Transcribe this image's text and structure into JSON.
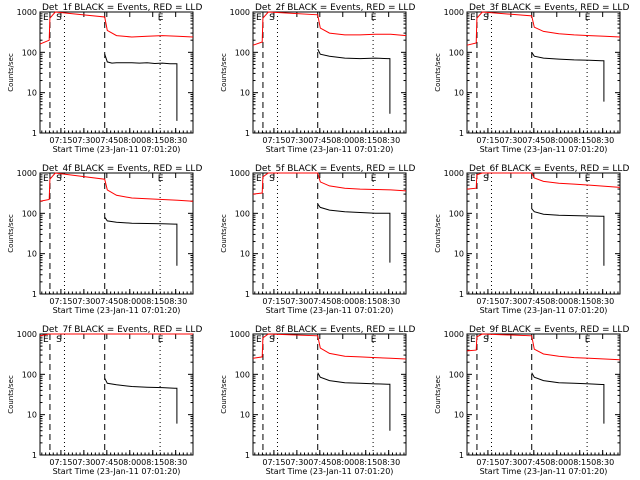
{
  "chart_data": [
    {
      "type": "line",
      "title": "Det_1f BLACK = Events, RED = LLD",
      "ylabel": "Counts/sec",
      "xlabel": "Start Time (23-Jan-11 07:01:20)",
      "y_scale": "log",
      "ylim": [
        1,
        1000
      ],
      "y_ticks": [
        "1",
        "10",
        "100",
        "1000"
      ],
      "x_ticks": [
        "07:15",
        "07:30",
        "07:45",
        "08:00",
        "08:15",
        "08:30"
      ],
      "markers": [
        "E",
        "S",
        "E"
      ],
      "series": [
        {
          "name": "Events",
          "color": "#000000",
          "x": [
            42.3,
            44,
            47,
            50,
            54,
            60,
            65,
            70,
            75,
            80,
            85,
            89.5,
            89.5
          ],
          "values": [
            90,
            58,
            54,
            55,
            55,
            55,
            54,
            55,
            53,
            54,
            52,
            52,
            2
          ]
        },
        {
          "name": "LLD",
          "color": "#ff0000",
          "x": [
            0,
            6,
            6.5,
            10,
            42.3,
            44,
            50,
            60,
            70,
            80,
            90,
            100
          ],
          "values": [
            160,
            200,
            700,
            1000,
            750,
            350,
            260,
            240,
            250,
            260,
            250,
            240
          ]
        }
      ]
    },
    {
      "type": "line",
      "title": "Det_2f BLACK = Events, RED = LLD",
      "ylabel": "Counts/sec",
      "xlabel": "Start Time (23-Jan-11 07:01:20)",
      "y_scale": "log",
      "ylim": [
        1,
        1000
      ],
      "y_ticks": [
        "1",
        "10",
        "100",
        "1000"
      ],
      "x_ticks": [
        "07:15",
        "07:30",
        "07:45",
        "08:00",
        "08:15",
        "08:30"
      ],
      "markers": [
        "E",
        "S",
        "E"
      ],
      "series": [
        {
          "name": "Events",
          "color": "#000000",
          "x": [
            42.3,
            44,
            50,
            60,
            70,
            80,
            88,
            89.5,
            89.5
          ],
          "values": [
            120,
            90,
            80,
            72,
            70,
            72,
            70,
            70,
            3
          ]
        },
        {
          "name": "LLD",
          "color": "#ff0000",
          "x": [
            0,
            6,
            6.5,
            10,
            42.3,
            44,
            50,
            60,
            70,
            80,
            90,
            100
          ],
          "values": [
            150,
            180,
            700,
            1000,
            850,
            400,
            300,
            270,
            270,
            280,
            280,
            260
          ]
        }
      ]
    },
    {
      "type": "line",
      "title": "Det_3f BLACK = Events, RED = LLD",
      "ylabel": "Counts/sec",
      "xlabel": "Start Time (23-Jan-11 07:01:20)",
      "y_scale": "log",
      "ylim": [
        1,
        1000
      ],
      "y_ticks": [
        "1",
        "10",
        "100",
        "1000"
      ],
      "x_ticks": [
        "07:15",
        "07:30",
        "07:45",
        "08:00",
        "08:15",
        "08:30"
      ],
      "markers": [
        "E",
        "S",
        "E"
      ],
      "series": [
        {
          "name": "Events",
          "color": "#000000",
          "x": [
            42.3,
            44,
            50,
            60,
            70,
            80,
            88,
            89.5,
            89.5
          ],
          "values": [
            100,
            80,
            72,
            68,
            65,
            64,
            62,
            62,
            6
          ]
        },
        {
          "name": "LLD",
          "color": "#ff0000",
          "x": [
            0,
            6,
            6.5,
            10,
            42.3,
            44,
            50,
            60,
            70,
            80,
            90,
            100
          ],
          "values": [
            150,
            170,
            700,
            1000,
            800,
            420,
            330,
            290,
            270,
            260,
            250,
            240
          ]
        }
      ]
    },
    {
      "type": "line",
      "title": "Det_4f BLACK = Events, RED = LLD",
      "ylabel": "Counts/sec",
      "xlabel": "Start Time (23-Jan-11 07:01:20)",
      "y_scale": "log",
      "ylim": [
        1,
        1000
      ],
      "y_ticks": [
        "1",
        "10",
        "100",
        "1000"
      ],
      "x_ticks": [
        "07:15",
        "07:30",
        "07:45",
        "08:00",
        "08:15",
        "08:30"
      ],
      "markers": [
        "E",
        "S",
        "E"
      ],
      "series": [
        {
          "name": "Events",
          "color": "#000000",
          "x": [
            42.3,
            44,
            50,
            60,
            70,
            80,
            88,
            89.5,
            89.5
          ],
          "values": [
            80,
            65,
            60,
            57,
            56,
            55,
            54,
            54,
            5
          ]
        },
        {
          "name": "LLD",
          "color": "#ff0000",
          "x": [
            0,
            6,
            6.5,
            10,
            42.3,
            44,
            50,
            60,
            70,
            80,
            90,
            100
          ],
          "values": [
            200,
            220,
            700,
            1000,
            700,
            380,
            280,
            240,
            230,
            220,
            210,
            200
          ]
        }
      ]
    },
    {
      "type": "line",
      "title": "Det_5f BLACK = Events, RED = LLD",
      "ylabel": "Counts/sec",
      "xlabel": "Start Time (23-Jan-11 07:01:20)",
      "y_scale": "log",
      "ylim": [
        1,
        1000
      ],
      "y_ticks": [
        "1",
        "10",
        "100",
        "1000"
      ],
      "x_ticks": [
        "07:15",
        "07:30",
        "07:45",
        "08:00",
        "08:15",
        "08:30"
      ],
      "markers": [
        "E",
        "S",
        "E"
      ],
      "series": [
        {
          "name": "Events",
          "color": "#000000",
          "x": [
            42.3,
            44,
            50,
            60,
            70,
            80,
            88,
            89.5,
            89.5
          ],
          "values": [
            170,
            140,
            120,
            110,
            105,
            100,
            100,
            100,
            6
          ]
        },
        {
          "name": "LLD",
          "color": "#ff0000",
          "x": [
            0,
            6,
            6.5,
            10,
            42.3,
            44,
            50,
            60,
            70,
            80,
            90,
            100
          ],
          "values": [
            300,
            320,
            800,
            1000,
            1000,
            600,
            480,
            420,
            400,
            390,
            380,
            360
          ]
        }
      ]
    },
    {
      "type": "line",
      "title": "Det_6f BLACK = Events, RED = LLD",
      "ylabel": "Counts/sec",
      "xlabel": "Start Time (23-Jan-11 07:01:20)",
      "y_scale": "log",
      "ylim": [
        1,
        1000
      ],
      "y_ticks": [
        "1",
        "10",
        "100",
        "1000"
      ],
      "x_ticks": [
        "07:15",
        "07:30",
        "07:45",
        "08:00",
        "08:15",
        "08:30"
      ],
      "markers": [
        "E",
        "S",
        "E"
      ],
      "series": [
        {
          "name": "Events",
          "color": "#000000",
          "x": [
            42.3,
            44,
            50,
            60,
            70,
            80,
            88,
            89.5,
            89.5
          ],
          "values": [
            130,
            110,
            95,
            90,
            88,
            86,
            85,
            85,
            5
          ]
        },
        {
          "name": "LLD",
          "color": "#ff0000",
          "x": [
            0,
            6,
            6.5,
            10,
            42.3,
            44,
            50,
            60,
            70,
            80,
            90,
            100
          ],
          "values": [
            400,
            420,
            900,
            1000,
            1000,
            750,
            620,
            560,
            530,
            500,
            470,
            440
          ]
        }
      ]
    },
    {
      "type": "line",
      "title": "Det_7f BLACK = Events, RED = LLD",
      "ylabel": "Counts/sec",
      "xlabel": "Start Time (23-Jan-11 07:01:20)",
      "y_scale": "log",
      "ylim": [
        1,
        1000
      ],
      "y_ticks": [
        "1",
        "10",
        "100",
        "1000"
      ],
      "x_ticks": [
        "07:15",
        "07:30",
        "07:45",
        "08:00",
        "08:15",
        "08:30"
      ],
      "markers": [
        "E",
        "S",
        "E"
      ],
      "series": [
        {
          "name": "Events",
          "color": "#000000",
          "x": [
            42.3,
            44,
            50,
            60,
            70,
            80,
            88,
            89.5,
            89.5
          ],
          "values": [
            80,
            60,
            55,
            50,
            48,
            47,
            45,
            45,
            6
          ]
        },
        {
          "name": "LLD",
          "color": "#ff0000",
          "x": [
            0,
            6,
            6.5,
            10,
            42.3,
            50,
            60,
            70,
            80,
            90,
            100
          ],
          "values": [
            900,
            1000,
            1000,
            1000,
            1000,
            1000,
            1000,
            1000,
            1000,
            1000,
            1000
          ]
        }
      ]
    },
    {
      "type": "line",
      "title": "Det_8f BLACK = Events, RED = LLD",
      "ylabel": "Counts/sec",
      "xlabel": "Start Time (23-Jan-11 07:01:20)",
      "y_scale": "log",
      "ylim": [
        1,
        1000
      ],
      "y_ticks": [
        "1",
        "10",
        "100",
        "1000"
      ],
      "x_ticks": [
        "07:15",
        "07:30",
        "07:45",
        "08:00",
        "08:15",
        "08:30"
      ],
      "markers": [
        "E",
        "S",
        "E"
      ],
      "series": [
        {
          "name": "Events",
          "color": "#000000",
          "x": [
            42.3,
            44,
            50,
            60,
            70,
            80,
            88,
            89.5,
            89.5
          ],
          "values": [
            110,
            85,
            70,
            62,
            60,
            58,
            57,
            57,
            4
          ]
        },
        {
          "name": "LLD",
          "color": "#ff0000",
          "x": [
            0,
            6,
            6.5,
            10,
            42.3,
            44,
            50,
            60,
            70,
            80,
            90,
            100
          ],
          "values": [
            250,
            270,
            800,
            1000,
            900,
            450,
            330,
            280,
            270,
            260,
            250,
            240
          ]
        }
      ]
    },
    {
      "type": "line",
      "title": "Det_9f BLACK = Events, RED = LLD",
      "ylabel": "Counts/sec",
      "xlabel": "Start Time (23-Jan-11 07:01:20)",
      "y_scale": "log",
      "ylim": [
        1,
        1000
      ],
      "y_ticks": [
        "1",
        "10",
        "100",
        "1000"
      ],
      "x_ticks": [
        "07:15",
        "07:30",
        "07:45",
        "08:00",
        "08:15",
        "08:30"
      ],
      "markers": [
        "E",
        "S",
        "E"
      ],
      "series": [
        {
          "name": "Events",
          "color": "#000000",
          "x": [
            42.3,
            44,
            50,
            60,
            70,
            80,
            88,
            89.5,
            89.5
          ],
          "values": [
            110,
            85,
            70,
            62,
            60,
            58,
            56,
            56,
            6
          ]
        },
        {
          "name": "LLD",
          "color": "#ff0000",
          "x": [
            0,
            6,
            6.5,
            10,
            42.3,
            44,
            50,
            60,
            70,
            80,
            90,
            100
          ],
          "values": [
            380,
            400,
            850,
            1000,
            900,
            420,
            320,
            280,
            260,
            250,
            240,
            230
          ]
        }
      ]
    }
  ]
}
